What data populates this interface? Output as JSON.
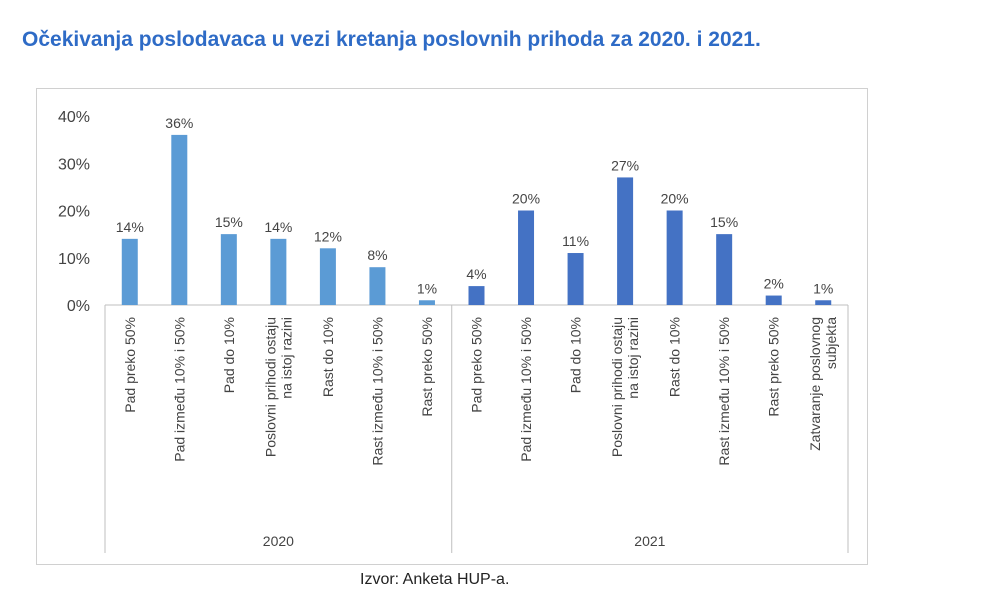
{
  "title": "Očekivanja poslodavaca u vezi kretanja poslovnih prihoda za 2020. i 2021.",
  "source": "Izvor: Anketa HUP-a.",
  "colors": {
    "title": "#2e6bc6",
    "series_2020": "#5b9bd5",
    "series_2021": "#4472c4"
  },
  "chart_data": {
    "type": "bar",
    "ylim": [
      0,
      40
    ],
    "yticks": [
      "0%",
      "10%",
      "20%",
      "30%",
      "40%"
    ],
    "grid": false,
    "legend": "none",
    "groups": [
      {
        "name": "2020",
        "categories": [
          "Pad preko 50%",
          "Pad između 10% i 50%",
          "Pad do 10%",
          "Poslovni prihodi ostaju na istoj razini",
          "Rast do 10%",
          "Rast između 10% i 50%",
          "Rast preko 50%"
        ],
        "values": [
          14,
          36,
          15,
          14,
          12,
          8,
          1
        ],
        "labels": [
          "14%",
          "36%",
          "15%",
          "14%",
          "12%",
          "8%",
          "1%"
        ]
      },
      {
        "name": "2021",
        "categories": [
          "Pad preko 50%",
          "Pad između 10% i 50%",
          "Pad do 10%",
          "Poslovni prihodi ostaju na istoj razini",
          "Rast do 10%",
          "Rast između 10% i 50%",
          "Rast preko 50%",
          "Zatvaranje poslovnog subjekta"
        ],
        "values": [
          4,
          20,
          11,
          27,
          20,
          15,
          2,
          1
        ],
        "labels": [
          "4%",
          "20%",
          "11%",
          "27%",
          "20%",
          "15%",
          "2%",
          "1%"
        ]
      }
    ]
  }
}
